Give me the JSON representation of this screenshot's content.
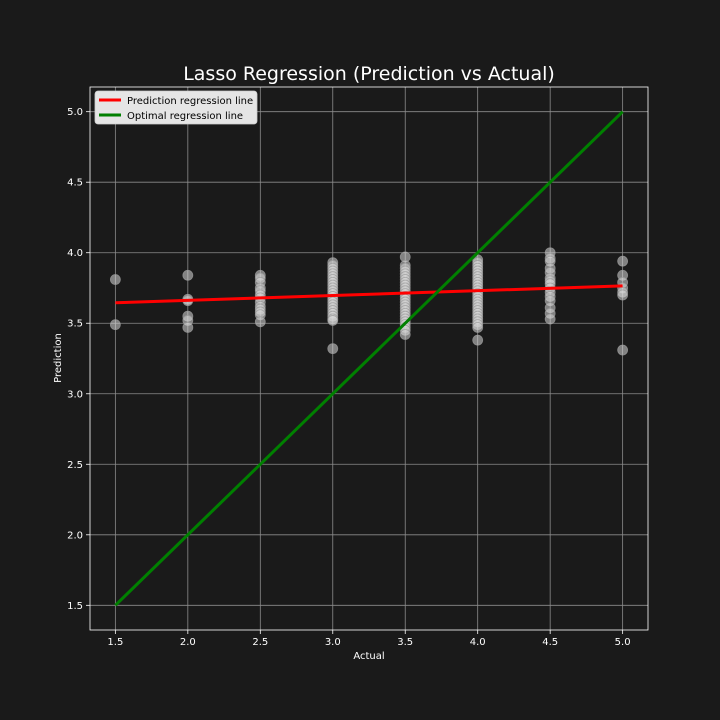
{
  "chart_data": {
    "type": "scatter",
    "title": "Lasso Regression (Prediction vs Actual)",
    "xlabel": "Actual",
    "ylabel": "Prediction",
    "xlim": [
      1.325,
      5.175
    ],
    "ylim": [
      1.325,
      5.175
    ],
    "xticks": [
      1.5,
      2.0,
      2.5,
      3.0,
      3.5,
      4.0,
      4.5,
      5.0
    ],
    "yticks": [
      1.5,
      2.0,
      2.5,
      3.0,
      3.5,
      4.0,
      4.5,
      5.0
    ],
    "grid": true,
    "legend_position": "top-left",
    "colors": {
      "background": "#1a1a1a",
      "points": "#d9d9d9",
      "prediction_line": "#ff0000",
      "optimal_line": "#008000",
      "grid": "#8c8c8c",
      "legend_bg": "#e5e5e5"
    },
    "series": [
      {
        "name": "Prediction regression line",
        "kind": "line",
        "x": [
          1.5,
          5.0
        ],
        "y": [
          3.645,
          3.765
        ]
      },
      {
        "name": "Optimal regression line",
        "kind": "line",
        "x": [
          1.5,
          5.0
        ],
        "y": [
          1.5,
          5.0
        ]
      }
    ],
    "points": [
      {
        "x": 1.5,
        "y": [
          3.81,
          3.49
        ]
      },
      {
        "x": 2.0,
        "y": [
          3.84,
          3.67,
          3.66,
          3.55,
          3.52,
          3.47
        ]
      },
      {
        "x": 2.5,
        "y": [
          3.84,
          3.82,
          3.79,
          3.75,
          3.73,
          3.7,
          3.68,
          3.65,
          3.62,
          3.6,
          3.58,
          3.56,
          3.51
        ]
      },
      {
        "x": 3.0,
        "y": [
          3.93,
          3.91,
          3.89,
          3.87,
          3.85,
          3.83,
          3.81,
          3.79,
          3.77,
          3.75,
          3.73,
          3.71,
          3.69,
          3.67,
          3.65,
          3.63,
          3.61,
          3.59,
          3.57,
          3.55,
          3.53,
          3.52,
          3.32
        ]
      },
      {
        "x": 3.5,
        "y": [
          3.97,
          3.91,
          3.89,
          3.87,
          3.85,
          3.83,
          3.81,
          3.79,
          3.77,
          3.75,
          3.73,
          3.71,
          3.69,
          3.67,
          3.65,
          3.63,
          3.61,
          3.59,
          3.57,
          3.55,
          3.53,
          3.51,
          3.49,
          3.47,
          3.45,
          3.42
        ]
      },
      {
        "x": 4.0,
        "y": [
          3.95,
          3.93,
          3.91,
          3.89,
          3.87,
          3.85,
          3.83,
          3.81,
          3.79,
          3.77,
          3.75,
          3.73,
          3.71,
          3.69,
          3.67,
          3.65,
          3.63,
          3.61,
          3.59,
          3.57,
          3.55,
          3.53,
          3.51,
          3.49,
          3.47,
          3.38
        ]
      },
      {
        "x": 4.5,
        "y": [
          4.0,
          3.96,
          3.94,
          3.89,
          3.86,
          3.82,
          3.8,
          3.78,
          3.75,
          3.72,
          3.69,
          3.66,
          3.61,
          3.57,
          3.53
        ]
      },
      {
        "x": 5.0,
        "y": [
          3.94,
          3.84,
          3.79,
          3.75,
          3.72,
          3.7,
          3.31
        ]
      }
    ]
  }
}
